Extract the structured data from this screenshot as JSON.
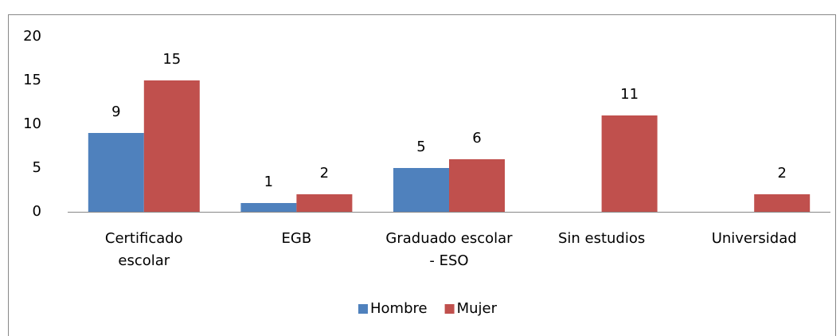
{
  "chart_data": {
    "type": "bar",
    "categories": [
      "Certificado escolar",
      "EGB",
      "Graduado escolar - ESO",
      "Sin estudios",
      "Universidad"
    ],
    "series": [
      {
        "name": "Hombre",
        "color": "#4f81bd",
        "values": [
          9,
          1,
          5,
          null,
          null
        ]
      },
      {
        "name": "Mujer",
        "color": "#c0504d",
        "values": [
          15,
          2,
          6,
          11,
          2
        ]
      }
    ],
    "ylim": [
      0,
      20
    ],
    "yticks": [
      0,
      5,
      10,
      15,
      20
    ],
    "grid": false,
    "legend": "bottom"
  }
}
